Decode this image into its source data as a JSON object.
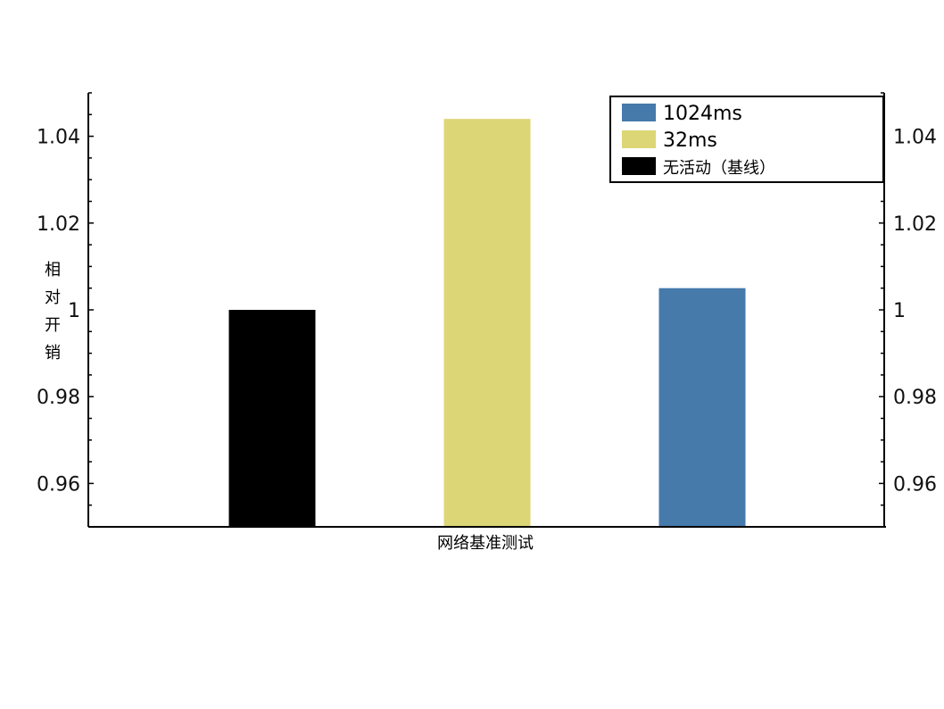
{
  "chart_data": {
    "type": "bar",
    "categories": [
      "无活动（基线）",
      "32ms",
      "1024ms"
    ],
    "series": [
      {
        "name": "无活动（基线）",
        "value": 1.0,
        "color": "#000000"
      },
      {
        "name": "32ms",
        "value": 1.044,
        "color": "#dcd677"
      },
      {
        "name": "1024ms",
        "value": 1.005,
        "color": "#457aab"
      }
    ],
    "legend_order": [
      "1024ms",
      "32ms",
      "无活动（基线）"
    ],
    "xlabel": "网络基准测试",
    "ylabel": "相对开销",
    "ylim": [
      0.95,
      1.05
    ],
    "yticks": [
      {
        "value": 0.96,
        "label": "0.96"
      },
      {
        "value": 0.98,
        "label": "0.98"
      },
      {
        "value": 1.0,
        "label": "1"
      },
      {
        "value": 1.02,
        "label": "1.02"
      },
      {
        "value": 1.04,
        "label": "1.04"
      }
    ],
    "legend_position": "top-right",
    "grid": false,
    "mirrored_right_axis": true
  }
}
